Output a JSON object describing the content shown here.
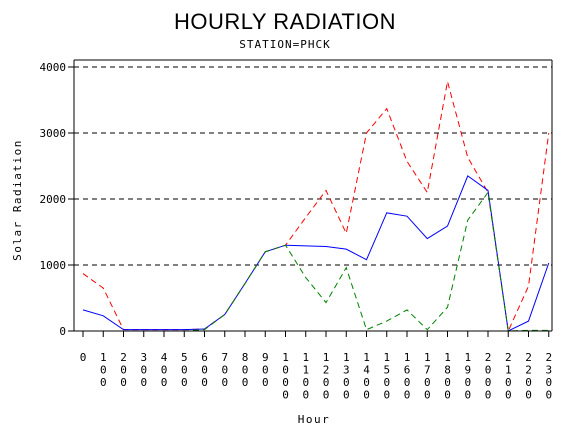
{
  "chart_data": {
    "type": "line",
    "title": "HOURLY RADIATION",
    "subtitle": "STATION=PHCK",
    "xlabel": "Hour",
    "ylabel": "Solar Radiation",
    "ylim": [
      0,
      4000
    ],
    "yticks": [
      "0",
      "1000",
      "2000",
      "3000",
      "4000"
    ],
    "grid": "horizontal dashed at each y tick",
    "categories": [
      "0",
      "100",
      "200",
      "300",
      "400",
      "500",
      "600",
      "700",
      "800",
      "900",
      "1000",
      "1100",
      "1200",
      "1300",
      "1400",
      "1500",
      "1600",
      "1700",
      "1800",
      "1900",
      "2000",
      "2100",
      "2200",
      "2300"
    ],
    "series": [
      {
        "color": "#ff0000",
        "dash": "dashed",
        "values": [
          870,
          650,
          20,
          20,
          20,
          20,
          30,
          250,
          720,
          1200,
          1300,
          1720,
          2130,
          1480,
          3000,
          3370,
          2570,
          2100,
          3780,
          2630,
          2100,
          0,
          680,
          3000
        ]
      },
      {
        "color": "#0000ff",
        "dash": "solid",
        "values": [
          320,
          230,
          20,
          20,
          20,
          20,
          30,
          250,
          720,
          1200,
          1300,
          1290,
          1280,
          1240,
          1080,
          1790,
          1740,
          1400,
          1590,
          2350,
          2130,
          0,
          150,
          1030
        ]
      },
      {
        "color": "#008000",
        "dash": "dashed",
        "values": [
          0,
          0,
          0,
          0,
          0,
          0,
          20,
          250,
          720,
          1200,
          1300,
          810,
          430,
          960,
          20,
          150,
          320,
          20,
          360,
          1680,
          2100,
          0,
          10,
          10
        ]
      }
    ]
  }
}
